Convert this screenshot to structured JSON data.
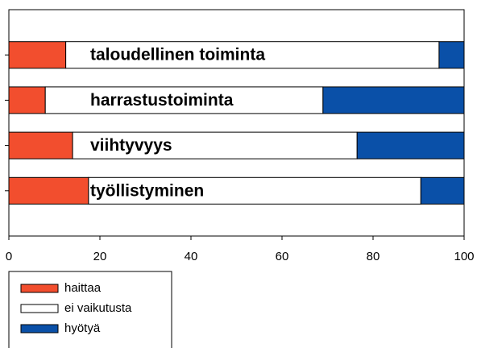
{
  "chart_data": {
    "type": "stacked-bar-horizontal",
    "categories": [
      "taloudellinen toiminta",
      "harrastustoiminta",
      "viihtyvyys",
      "työllistyminen"
    ],
    "series": [
      {
        "name": "haittaa",
        "color": "#f24e2e",
        "values": [
          12.5,
          8,
          14,
          17.5
        ]
      },
      {
        "name": "ei vaikutusta",
        "color": "#ffffff",
        "values": [
          82,
          61,
          62.5,
          73
        ]
      },
      {
        "name": "hyötyä",
        "color": "#0a50a8",
        "values": [
          5.5,
          31,
          23.5,
          9.5
        ]
      }
    ],
    "xlim": [
      0,
      100
    ],
    "xticks": [
      0,
      20,
      40,
      60,
      80,
      100
    ],
    "legend": "bottom-left"
  }
}
